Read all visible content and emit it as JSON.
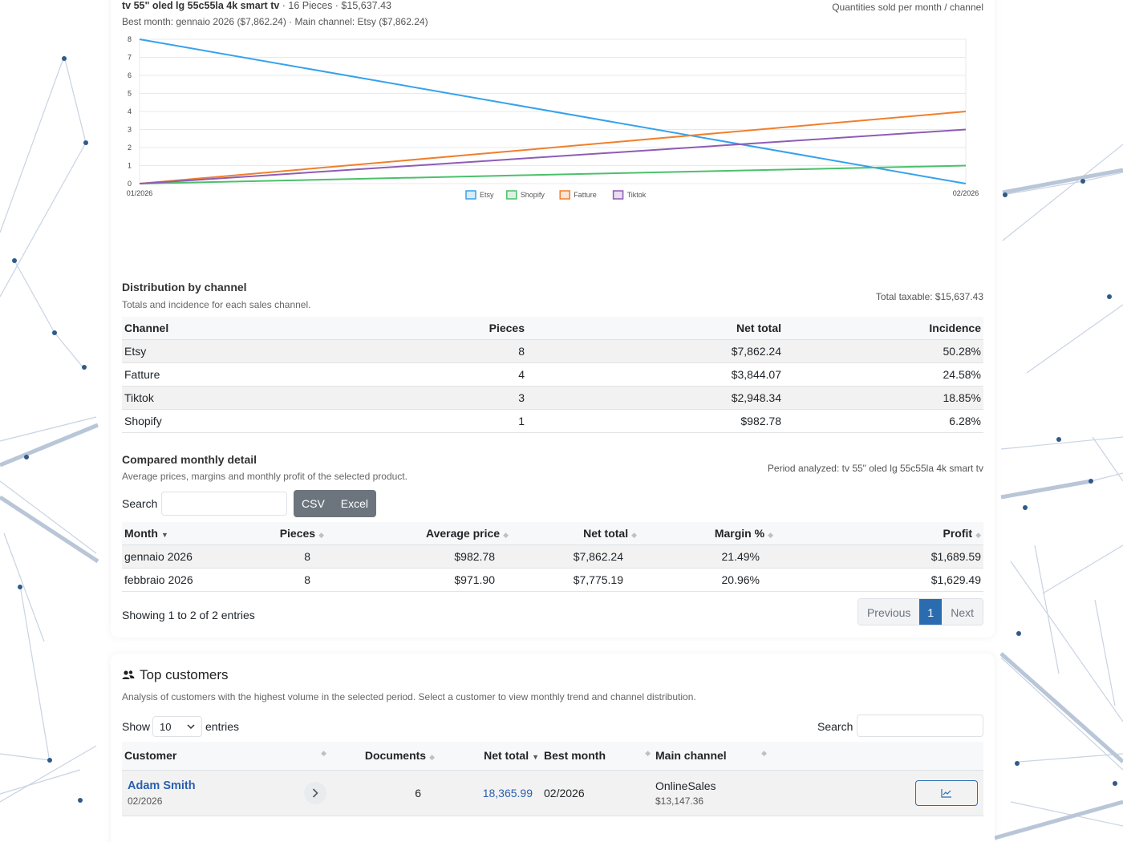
{
  "product": {
    "name": "tv 55\" oled lg 55c55la 4k smart tv",
    "summary": "· 16 Pieces · $15,637.43",
    "best_line": "Best month: gennaio 2026 ($7,862.24) · Main channel: Etsy ($7,862.24)",
    "chart_caption": "Quantities sold per month / channel"
  },
  "chart_data": {
    "type": "line",
    "x": [
      "01/2026",
      "02/2026"
    ],
    "ylim": [
      0,
      8
    ],
    "yticks": [
      0,
      1,
      2,
      3,
      4,
      5,
      6,
      7,
      8
    ],
    "grid": true,
    "legend": "bottom",
    "series": [
      {
        "name": "Etsy",
        "values": [
          8,
          0
        ],
        "color": "#36a2eb"
      },
      {
        "name": "Shopify",
        "values": [
          0,
          1
        ],
        "color": "#4bc06b"
      },
      {
        "name": "Fatture",
        "values": [
          0,
          4
        ],
        "color": "#f07f2d"
      },
      {
        "name": "Tiktok",
        "values": [
          0,
          3
        ],
        "color": "#8e5cb5"
      }
    ]
  },
  "distribution": {
    "title": "Distribution by channel",
    "subtitle": "Totals and incidence for each sales channel.",
    "total": "Total taxable: $15,637.43",
    "headers": [
      "Channel",
      "Pieces",
      "Net total",
      "Incidence"
    ],
    "rows": [
      [
        "Etsy",
        "8",
        "$7,862.24",
        "50.28%"
      ],
      [
        "Fatture",
        "4",
        "$3,844.07",
        "24.58%"
      ],
      [
        "Tiktok",
        "3",
        "$2,948.34",
        "18.85%"
      ],
      [
        "Shopify",
        "1",
        "$982.78",
        "6.28%"
      ]
    ]
  },
  "monthly": {
    "title": "Compared monthly detail",
    "subtitle": "Average prices, margins and monthly profit of the selected product.",
    "period": "Period analyzed: tv 55\" oled lg 55c55la 4k smart tv",
    "search_label": "Search",
    "csv_label": "CSV",
    "excel_label": "Excel",
    "headers": [
      "Month",
      "Pieces",
      "Average price",
      "Net total",
      "Margin %",
      "Profit"
    ],
    "rows": [
      [
        "gennaio 2026",
        "8",
        "$982.78",
        "$7,862.24",
        "21.49%",
        "$1,689.59"
      ],
      [
        "febbraio 2026",
        "8",
        "$971.90",
        "$7,775.19",
        "20.96%",
        "$1,629.49"
      ]
    ],
    "info": "Showing 1 to 2 of 2 entries",
    "pager": {
      "previous": "Previous",
      "current": "1",
      "next": "Next"
    }
  },
  "customers": {
    "title": "Top customers",
    "subtitle": "Analysis of customers with the highest volume in the selected period. Select a customer to view monthly trend and channel distribution.",
    "show_label": "Show",
    "show_value": "10",
    "entries_label": "entries",
    "search_label": "Search",
    "headers": [
      "Customer",
      "Documents",
      "Net total",
      "Best month",
      "Main channel"
    ],
    "rows": [
      {
        "name": "Adam Smith",
        "date": "02/2026",
        "documents": "6",
        "net_total": "18,365.99",
        "best_month": "02/2026",
        "channel": "OnlineSales",
        "channel_amount": "$13,147.36"
      }
    ]
  },
  "colors": {
    "accent": "#2b6cb0",
    "button_dark": "#6c757d"
  }
}
